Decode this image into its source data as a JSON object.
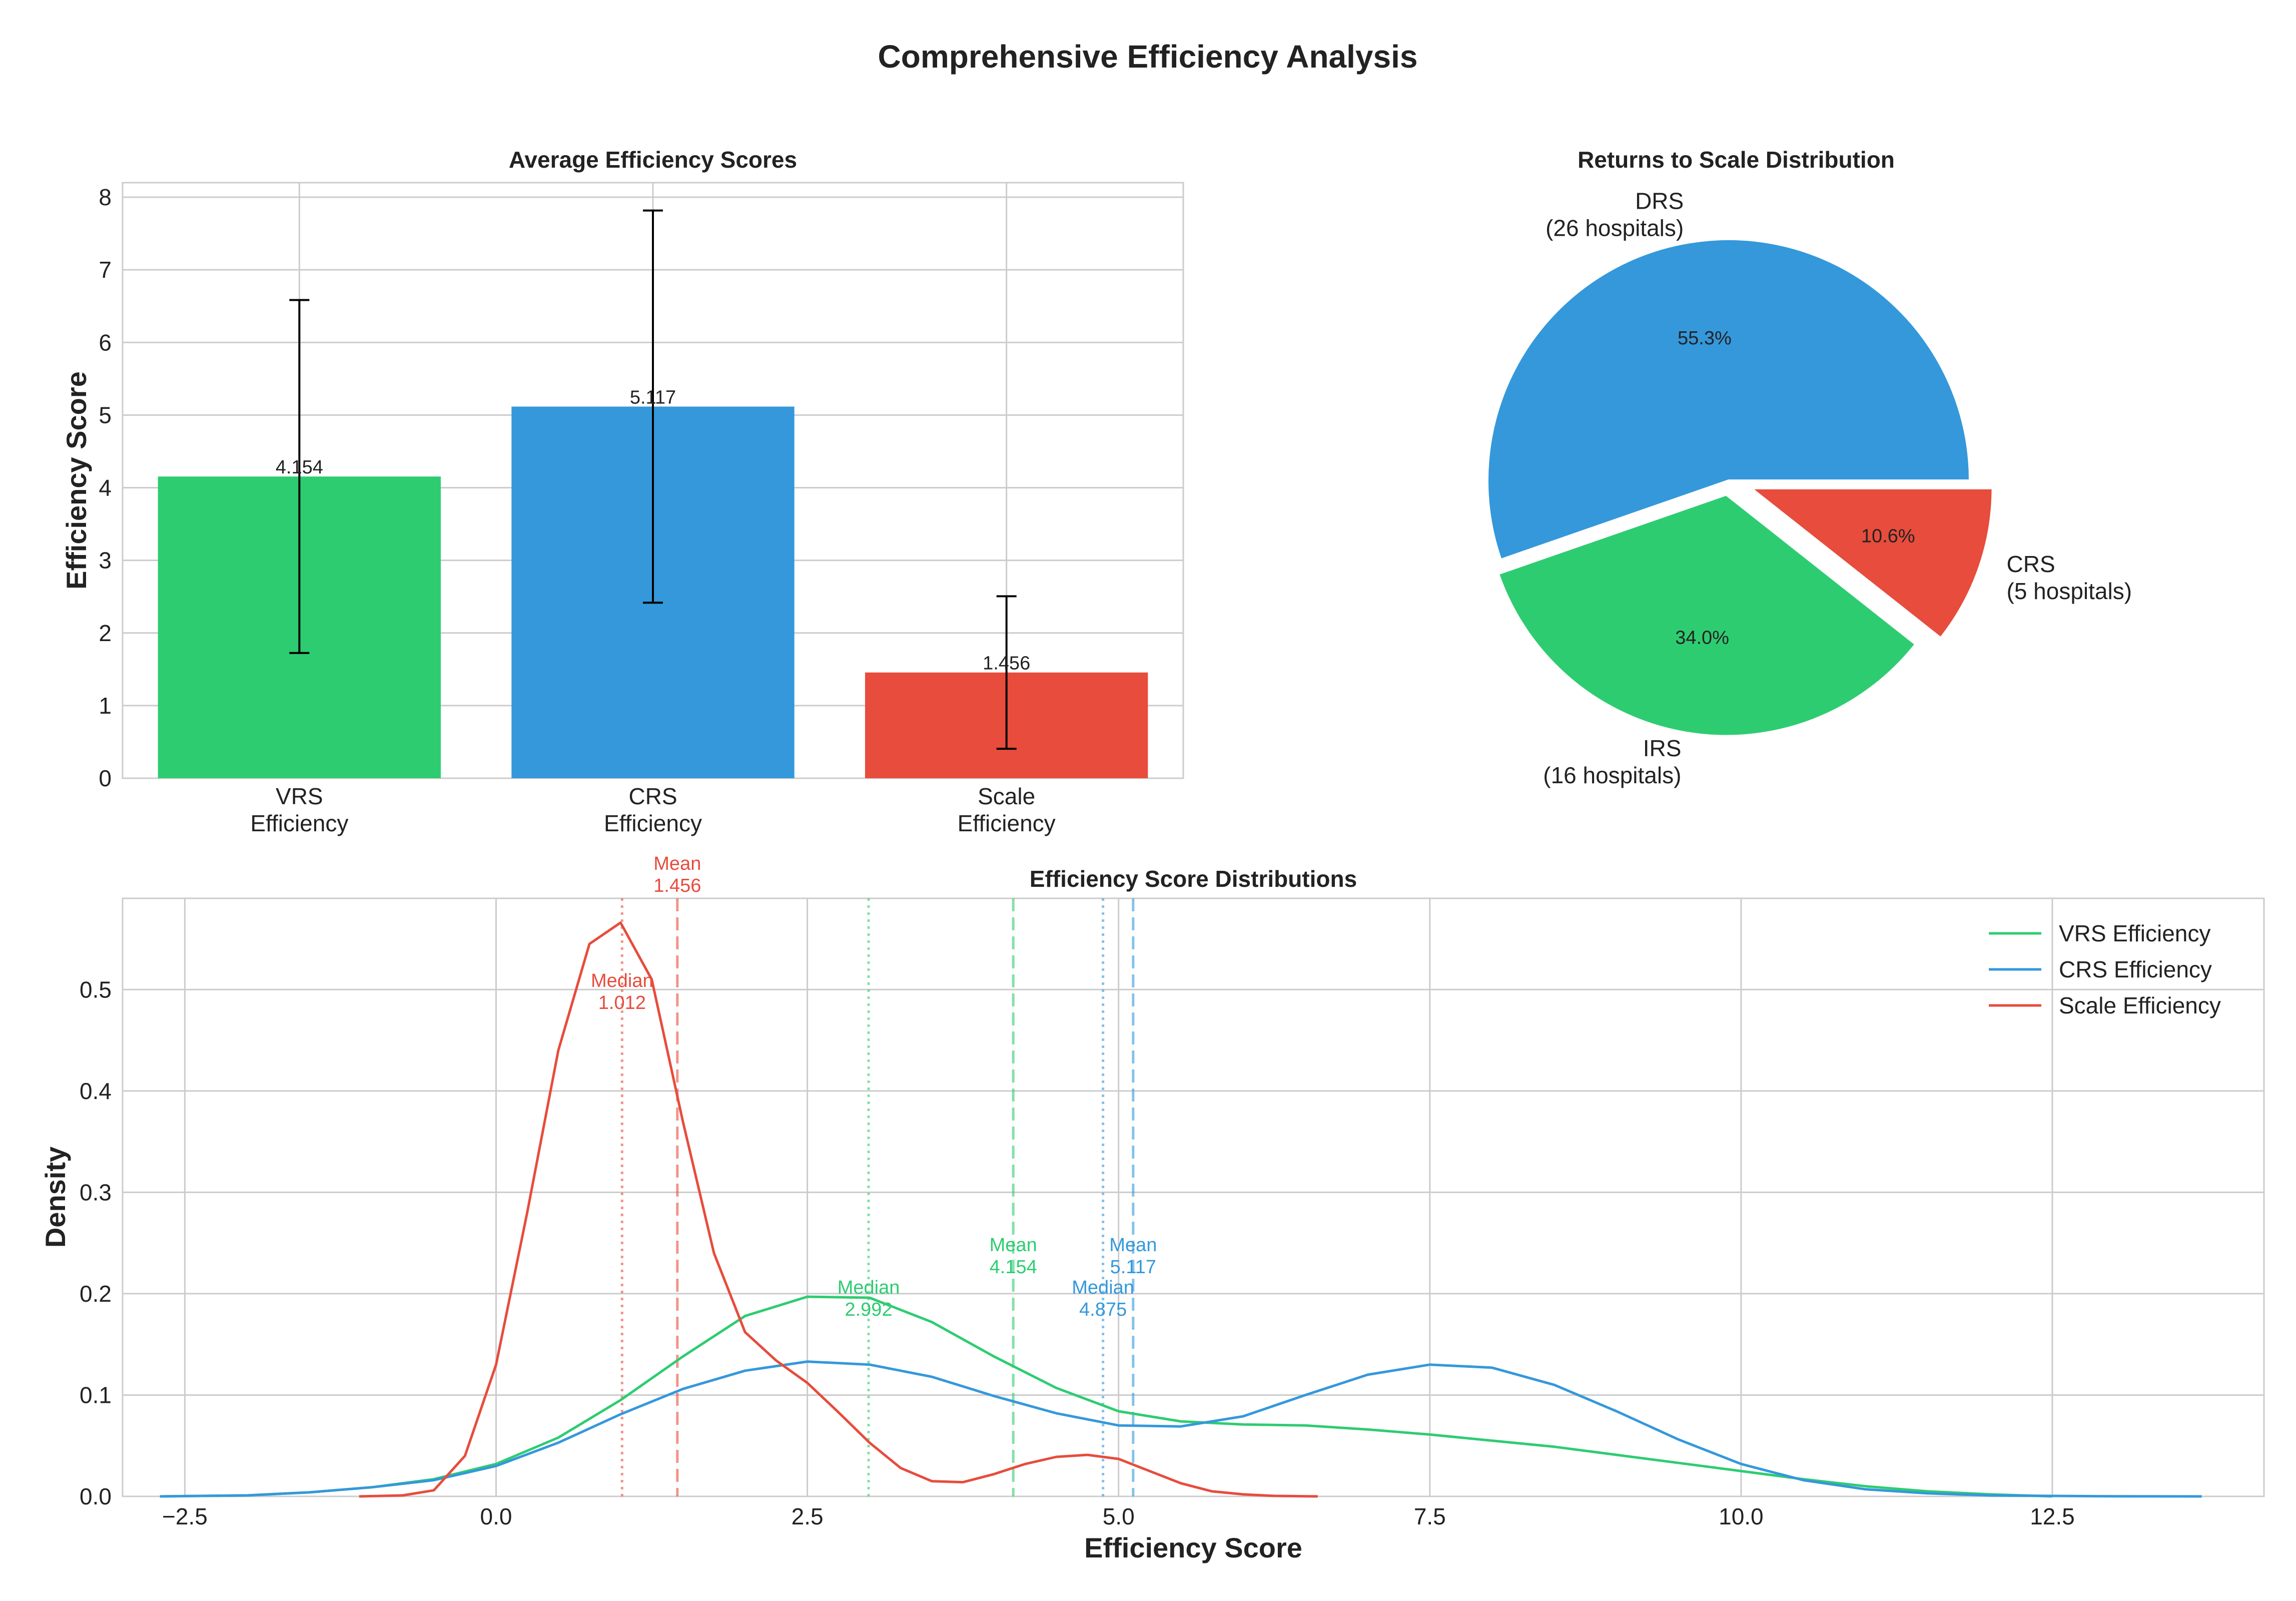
{
  "figure_title": "Comprehensive Efficiency Analysis",
  "colors": {
    "vrs": "#2ecc71",
    "crs": "#3498db",
    "scale": "#e74c3c",
    "grid": "#cccccc",
    "text": "#222222"
  },
  "chart_data": [
    {
      "type": "bar",
      "title": "Average Efficiency Scores",
      "ylabel": "Efficiency Score",
      "xlabel": "",
      "categories": [
        "VRS\nEfficiency",
        "CRS\nEfficiency",
        "Scale\nEfficiency"
      ],
      "values": [
        4.154,
        5.117,
        1.456
      ],
      "value_labels": [
        "4.154",
        "5.117",
        "1.456"
      ],
      "error": [
        2.43,
        2.7,
        1.05
      ],
      "colors": [
        "#2ecc71",
        "#3498db",
        "#e74c3c"
      ],
      "ylim": [
        0,
        8.2
      ],
      "yticks": [
        0,
        1,
        2,
        3,
        4,
        5,
        6,
        7,
        8
      ],
      "grid": true
    },
    {
      "type": "pie",
      "title": "Returns to Scale Distribution",
      "slices": [
        {
          "label": "DRS\n(26 hospitals)",
          "pct_label": "55.3%",
          "value": 26,
          "color": "#3498db"
        },
        {
          "label": "IRS\n(16 hospitals)",
          "pct_label": "34.0%",
          "value": 16,
          "color": "#2ecc71"
        },
        {
          "label": "CRS\n(5 hospitals)",
          "pct_label": "10.6%",
          "value": 5,
          "color": "#e74c3c"
        }
      ]
    },
    {
      "type": "line",
      "title": "Efficiency Score Distributions",
      "xlabel": "Efficiency Score",
      "ylabel": "Density",
      "xlim": [
        -3.0,
        14.2
      ],
      "ylim": [
        0,
        0.59
      ],
      "xticks": [
        -2.5,
        0.0,
        2.5,
        5.0,
        7.5,
        10.0,
        12.5
      ],
      "xtick_labels": [
        "−2.5",
        "0.0",
        "2.5",
        "5.0",
        "7.5",
        "10.0",
        "12.5"
      ],
      "yticks": [
        0.0,
        0.1,
        0.2,
        0.3,
        0.4,
        0.5
      ],
      "ytick_labels": [
        "0.0",
        "0.1",
        "0.2",
        "0.3",
        "0.4",
        "0.5"
      ],
      "legend": "top-right",
      "grid": true,
      "series": [
        {
          "name": "VRS Efficiency",
          "color": "#2ecc71",
          "x": [
            -2.7,
            -2.0,
            -1.5,
            -1.0,
            -0.5,
            0.0,
            0.5,
            1.0,
            1.5,
            2.0,
            2.5,
            3.0,
            3.5,
            4.0,
            4.5,
            5.0,
            5.5,
            6.0,
            6.5,
            7.0,
            7.5,
            8.0,
            8.5,
            9.0,
            9.5,
            10.0,
            10.5,
            11.0,
            11.5,
            12.0,
            12.5
          ],
          "y": [
            0.0,
            0.001,
            0.004,
            0.009,
            0.017,
            0.032,
            0.058,
            0.095,
            0.138,
            0.178,
            0.197,
            0.196,
            0.172,
            0.138,
            0.107,
            0.084,
            0.074,
            0.071,
            0.07,
            0.066,
            0.061,
            0.055,
            0.049,
            0.041,
            0.033,
            0.025,
            0.017,
            0.01,
            0.005,
            0.002,
            0.0
          ]
        },
        {
          "name": "CRS Efficiency",
          "color": "#3498db",
          "x": [
            -2.7,
            -2.0,
            -1.5,
            -1.0,
            -0.5,
            0.0,
            0.5,
            1.0,
            1.5,
            2.0,
            2.5,
            3.0,
            3.5,
            4.0,
            4.5,
            5.0,
            5.5,
            6.0,
            6.5,
            7.0,
            7.5,
            8.0,
            8.5,
            9.0,
            9.5,
            10.0,
            10.5,
            11.0,
            11.5,
            12.0,
            12.5,
            13.0,
            13.7
          ],
          "y": [
            0.0,
            0.001,
            0.004,
            0.009,
            0.016,
            0.03,
            0.053,
            0.081,
            0.106,
            0.124,
            0.133,
            0.13,
            0.118,
            0.099,
            0.082,
            0.07,
            0.069,
            0.079,
            0.1,
            0.12,
            0.13,
            0.127,
            0.11,
            0.084,
            0.056,
            0.032,
            0.016,
            0.007,
            0.003,
            0.001,
            0.0005,
            0.0001,
            0.0
          ]
        },
        {
          "name": "Scale Efficiency",
          "color": "#e74c3c",
          "x": [
            -1.1,
            -0.75,
            -0.5,
            -0.25,
            0.0,
            0.25,
            0.5,
            0.75,
            1.0,
            1.25,
            1.5,
            1.75,
            2.0,
            2.25,
            2.5,
            2.75,
            3.0,
            3.25,
            3.5,
            3.75,
            4.0,
            4.25,
            4.5,
            4.75,
            5.0,
            5.25,
            5.5,
            5.75,
            6.0,
            6.25,
            6.6
          ],
          "y": [
            0.0,
            0.001,
            0.006,
            0.04,
            0.13,
            0.28,
            0.44,
            0.545,
            0.566,
            0.51,
            0.37,
            0.24,
            0.162,
            0.134,
            0.112,
            0.083,
            0.053,
            0.028,
            0.015,
            0.014,
            0.022,
            0.032,
            0.039,
            0.041,
            0.037,
            0.025,
            0.013,
            0.005,
            0.002,
            0.0005,
            0.0
          ]
        }
      ],
      "reference_lines": [
        {
          "series": "VRS Efficiency",
          "kind": "mean",
          "x": 4.154,
          "style": "dashed",
          "label": "Mean\n4.154",
          "color": "#2ecc71"
        },
        {
          "series": "VRS Efficiency",
          "kind": "median",
          "x": 2.992,
          "style": "dotted",
          "label": "Median\n2.992",
          "color": "#2ecc71"
        },
        {
          "series": "CRS Efficiency",
          "kind": "mean",
          "x": 5.117,
          "style": "dashed",
          "label": "Mean\n5.117",
          "color": "#3498db"
        },
        {
          "series": "CRS Efficiency",
          "kind": "median",
          "x": 4.875,
          "style": "dotted",
          "label": "Median\n4.875",
          "color": "#3498db"
        },
        {
          "series": "Scale Efficiency",
          "kind": "mean",
          "x": 1.456,
          "style": "dashed",
          "label": "Mean\n1.456",
          "color": "#e74c3c"
        },
        {
          "series": "Scale Efficiency",
          "kind": "median",
          "x": 1.012,
          "style": "dotted",
          "label": "Median\n1.012",
          "color": "#e74c3c"
        }
      ]
    }
  ]
}
